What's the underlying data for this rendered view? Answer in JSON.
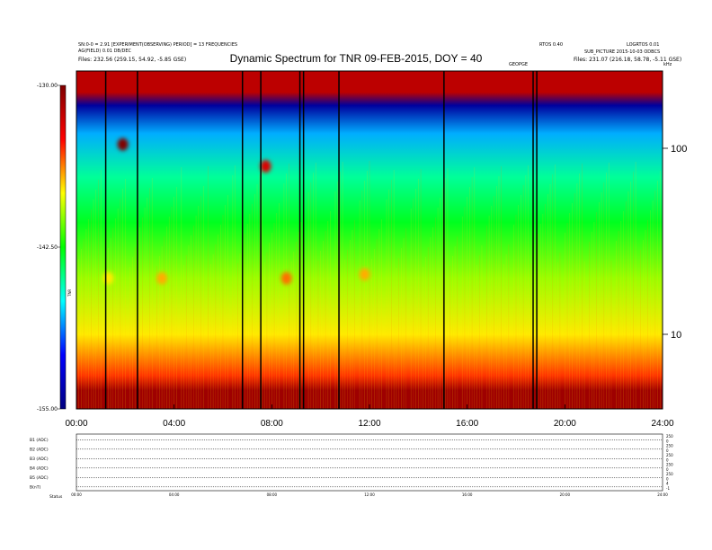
{
  "chart_data": {
    "type": "heatmap",
    "title": "Dynamic Spectrum for TNR 09-FEB-2015, DOY = 40",
    "header": {
      "left_line1": "SN:0-0 = 2.91  [EXPERIMENT(OBSERVING) PERIOD] = 13 FREQUENCIES",
      "left_line2": "AG(FIELD) 0.01 DB/DEC",
      "left_line3": "Files:   232.56 (259.15, 54.92, -5.85 GSE)",
      "right_line1": "RTOS 0.40",
      "right_line2": "LOGRTOS 0.01",
      "right_line3": "SUB_PICTURE 2015-10-03 ODBCS",
      "right_line4": "Files:   231.07 (216.18, 58.78, -5.11 GSE)",
      "marker": "GEOPGE",
      "corner_label": "kHz"
    },
    "time_axis": {
      "ticks": [
        "00:00",
        "04:00",
        "08:00",
        "12:00",
        "16:00",
        "20:00",
        "24:00"
      ],
      "range_hours": [
        0,
        24
      ]
    },
    "frequency_axis": {
      "scale": "log",
      "tick_labels": [
        "10",
        "100"
      ],
      "unit": "kHz"
    },
    "colorbar": {
      "ticks": [
        "-130.00",
        "-142.50",
        "-155.00"
      ],
      "label": "TNR",
      "range": [
        -155.0,
        -130.0
      ],
      "colors": [
        "#00007f",
        "#0000ff",
        "#00ffff",
        "#00ff00",
        "#ffff00",
        "#ff0000",
        "#7f0000"
      ]
    },
    "data_gaps_hours": [
      1.2,
      2.5,
      6.8,
      7.55,
      9.15,
      9.3,
      10.75,
      15.05,
      18.7,
      18.85
    ],
    "intensity_bursts": [
      {
        "t_hours": 1.9,
        "freq_khz": 105,
        "level": -130
      },
      {
        "t_hours": 7.75,
        "freq_khz": 80,
        "level": -133
      },
      {
        "t_hours": 1.3,
        "freq_khz": 20,
        "level": -138
      },
      {
        "t_hours": 3.5,
        "freq_khz": 20,
        "level": -137
      },
      {
        "t_hours": 8.6,
        "freq_khz": 20,
        "level": -136
      },
      {
        "t_hours": 11.8,
        "freq_khz": 21,
        "level": -137
      }
    ],
    "spectrum_bands": [
      {
        "freq_khz": 200,
        "level": -132,
        "note": "top bright band"
      },
      {
        "freq_khz": 170,
        "level": -154,
        "note": "dark absorption band"
      },
      {
        "freq_khz": 120,
        "level": -148
      },
      {
        "freq_khz": 70,
        "level": -145
      },
      {
        "freq_khz": 40,
        "level": -143
      },
      {
        "freq_khz": 20,
        "level": -140
      },
      {
        "freq_khz": 10,
        "level": -138
      },
      {
        "freq_khz": 6,
        "level": -135
      },
      {
        "freq_khz": 5,
        "level": -131
      }
    ],
    "lower_panels": {
      "row_labels": [
        "B1 (ADC)",
        "B2 (ADC)",
        "B3 (ADC)",
        "B4 (ADC)",
        "B5 (ADC)",
        "B(nT)"
      ],
      "right_ticks": [
        [
          "0",
          "250"
        ],
        [
          "0",
          "250"
        ],
        [
          "0",
          "250"
        ],
        [
          "0",
          "250"
        ],
        [
          "0",
          "250"
        ],
        [
          "-1",
          "4"
        ]
      ],
      "time_ticks": [
        "00:00",
        "04:00",
        "08:00",
        "12:00",
        "16:00",
        "20:00",
        "24:00"
      ],
      "footer_label": "Status"
    }
  }
}
